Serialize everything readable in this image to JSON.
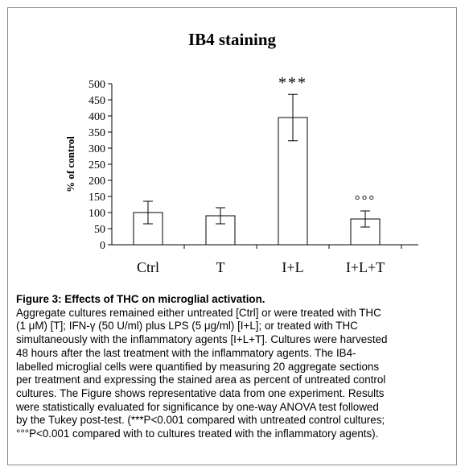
{
  "chart_data": {
    "type": "bar",
    "title": "IB4 staining",
    "xlabel": "",
    "ylabel": "% of control",
    "ylim": [
      0,
      500
    ],
    "yticks": [
      0,
      50,
      100,
      150,
      200,
      250,
      300,
      350,
      400,
      450,
      500
    ],
    "categories": [
      "Ctrl",
      "T",
      "I+L",
      "I+L+T"
    ],
    "values": [
      100,
      90,
      395,
      80
    ],
    "error_bars": [
      35,
      25,
      72,
      25
    ],
    "annotations": [
      "",
      "",
      "***",
      "°°°"
    ],
    "grid": false,
    "legend": "none",
    "bar_fill": "#ffffff",
    "bar_stroke": "#000000"
  },
  "caption": {
    "title": "Figure 3: Effects of THC on microglial activation.",
    "body_lines": [
      "Aggregate cultures remained either untreated [Ctrl] or were treated with THC",
      "(1 μM) [T]; IFN-γ (50 U/ml) plus LPS (5 μg/ml) [I+L]; or treated with THC",
      "simultaneously with the inflammatory agents [I+L+T]. Cultures were harvested",
      "48 hours after the last treatment with the inflammatory agents. The IB4-",
      "labelled microglial cells were quantified by measuring 20 aggregate sections",
      "per treatment and expressing the stained area as percent of untreated control",
      "cultures. The Figure shows representative data from one experiment. Results",
      "were statistically evaluated for significance by one-way ANOVA test followed",
      "by the Tukey post-test. (***P<0.001 compared with untreated control cultures;",
      "°°°P<0.001 compared with to cultures treated with the inflammatory agents)."
    ]
  }
}
